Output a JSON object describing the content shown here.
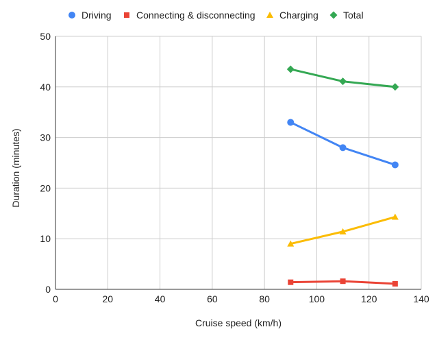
{
  "chart_data": {
    "type": "line",
    "xlabel": "Cruise speed (km/h)",
    "ylabel": "Duration (minutes)",
    "xlim": [
      0,
      140
    ],
    "ylim": [
      0,
      50
    ],
    "x_ticks": [
      0,
      20,
      40,
      60,
      80,
      100,
      120,
      140
    ],
    "y_ticks": [
      0,
      10,
      20,
      30,
      40,
      50
    ],
    "grid": true,
    "legend_position": "top",
    "x": [
      90,
      110,
      130
    ],
    "series": [
      {
        "name": "Driving",
        "values": [
          33.0,
          28.0,
          24.6
        ],
        "color": "#4285f4",
        "marker": "circle"
      },
      {
        "name": "Connecting & disconnecting",
        "values": [
          1.4,
          1.6,
          1.1
        ],
        "color": "#ea4335",
        "marker": "square"
      },
      {
        "name": "Charging",
        "values": [
          9.0,
          11.4,
          14.3
        ],
        "color": "#fbbc04",
        "marker": "triangle"
      },
      {
        "name": "Total",
        "values": [
          43.5,
          41.1,
          40.0
        ],
        "color": "#34a853",
        "marker": "diamond"
      }
    ]
  }
}
